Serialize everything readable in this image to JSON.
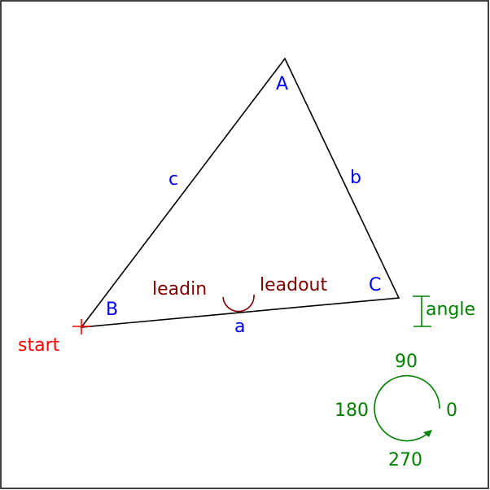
{
  "vertices": {
    "A": "A",
    "B": "B",
    "C": "C"
  },
  "sides": {
    "a": "a",
    "b": "b",
    "c": "c"
  },
  "arc_labels": {
    "leadin": "leadin",
    "leadout": "leadout"
  },
  "start_label": "start",
  "angle_label": "angle",
  "direction_labels": {
    "d0": "0",
    "d90": "90",
    "d180": "180",
    "d270": "270"
  },
  "colors": {
    "triangle": "#000000",
    "vertex_and_side_labels": "#0000ff",
    "lead_arc": "#800000",
    "start_marker": "#ff0000",
    "angle_and_direction": "#008000"
  }
}
